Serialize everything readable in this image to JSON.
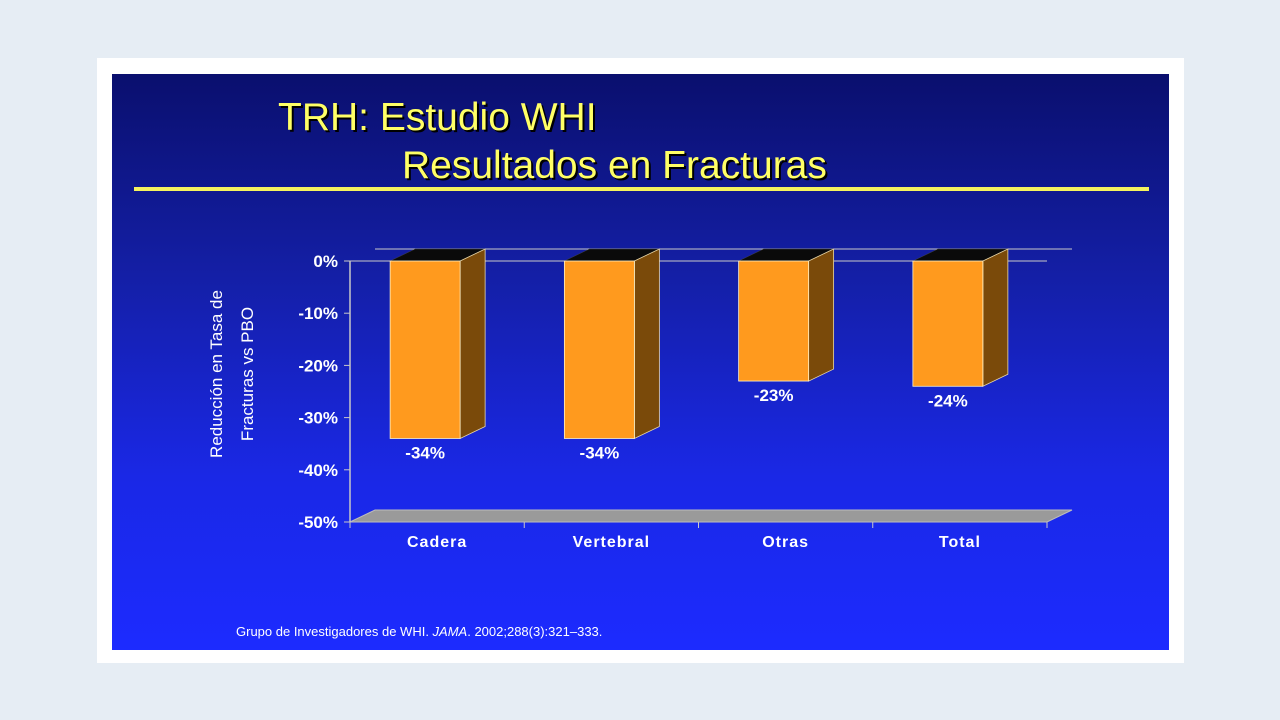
{
  "slide": {
    "title_line1": "TRH: Estudio WHI",
    "title_line2": "Resultados en Fracturas",
    "footnote": {
      "part1": "Grupo de Investigadores de WHI. ",
      "journal": "JAMA",
      "part2": ". 2002;288(3):321–333."
    }
  },
  "colors": {
    "bar_front": "#ff9a1e",
    "bar_side": "#7a4a0a",
    "bar_top": "#0a0a0a",
    "title": "#ffff66",
    "floor": "#9a9a9a"
  },
  "chart_data": {
    "type": "bar",
    "categories": [
      "Cadera",
      "Vertebral",
      "Otras",
      "Total"
    ],
    "values": [
      -34,
      -34,
      -23,
      -24
    ],
    "value_labels": [
      "-34%",
      "-34%",
      "-23%",
      "-24%"
    ],
    "yticks": [
      "0%",
      "-10%",
      "-20%",
      "-30%",
      "-40%",
      "-50%"
    ],
    "ylim": [
      -50,
      0
    ],
    "ylabel_line1": "Reducción en Tasa de",
    "ylabel_line2": "Fracturas vs PBO",
    "xlabel": "",
    "title": "",
    "style": "3d-column"
  }
}
